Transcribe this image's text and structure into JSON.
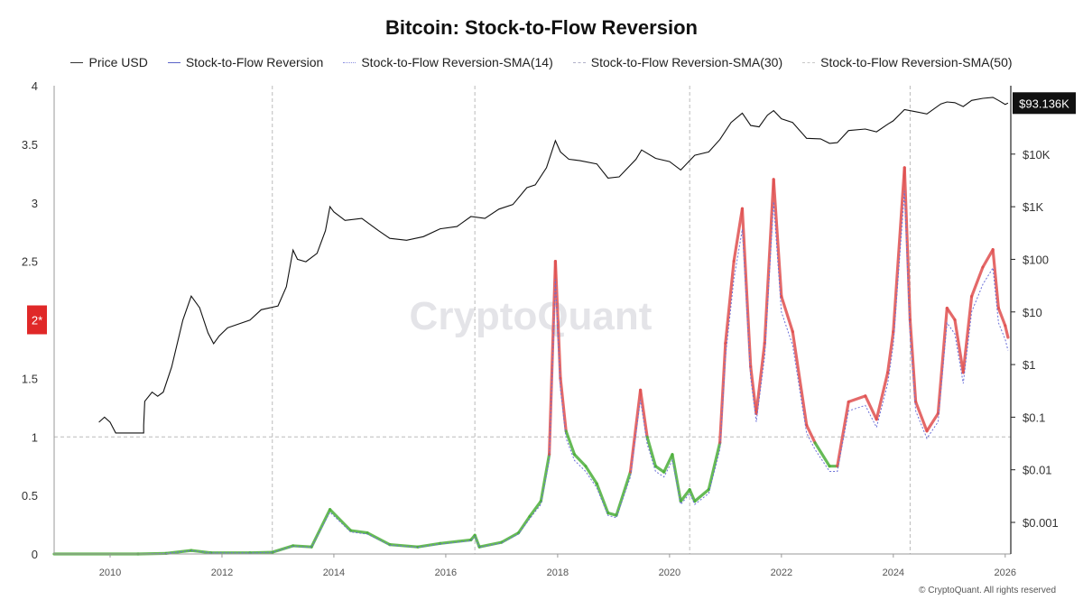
{
  "chart_data": {
    "type": "line",
    "title": "Bitcoin: Stock-to-Flow Reversion",
    "watermark": "CryptoQuant",
    "copyright": "© CryptoQuant. All rights reserved",
    "threshold_label": "2*",
    "current_price_label": "$93.136K",
    "legend": [
      {
        "name": "Price USD",
        "style": "solid",
        "color": "#333333"
      },
      {
        "name": "Stock-to-Flow Reversion",
        "style": "solid",
        "color": "#5a63c8"
      },
      {
        "name": "Stock-to-Flow Reversion-SMA(14)",
        "style": "dotted",
        "color": "#8a8fe0"
      },
      {
        "name": "Stock-to-Flow Reversion-SMA(30)",
        "style": "dashed",
        "color": "#b0b0c8"
      },
      {
        "name": "Stock-to-Flow Reversion-SMA(50)",
        "style": "dashed",
        "color": "#c8c8c8"
      }
    ],
    "x_ticks": [
      "2010",
      "2012",
      "2014",
      "2016",
      "2018",
      "2020",
      "2022",
      "2024",
      "2026"
    ],
    "x_range": [
      2009.0,
      2026.1
    ],
    "halvings": [
      2012.9,
      2016.52,
      2020.36,
      2024.3
    ],
    "y_left_ticks": [
      "0",
      "0.5",
      "1",
      "1.5",
      "2",
      "2.5",
      "3",
      "3.5",
      "4"
    ],
    "y_left_range": [
      0,
      4
    ],
    "y_left_reference": 1,
    "y_right_ticks": [
      "$0.001",
      "$0.01",
      "$0.1",
      "$1",
      "$10",
      "$100",
      "$1K",
      "$10K"
    ],
    "y_right_range_log10": [
      -3.6,
      5.3
    ],
    "colors": {
      "above_1": "#e05050",
      "below_1": "#4caf3a",
      "sma": "#6a6fd8",
      "price": "#111111",
      "badge": "#111111",
      "threshold_badge": "#e02828"
    },
    "price_series": [
      [
        2009.8,
        0.08
      ],
      [
        2009.9,
        0.1
      ],
      [
        2010.0,
        0.08
      ],
      [
        2010.1,
        0.05
      ],
      [
        2010.6,
        0.05
      ],
      [
        2010.6,
        0.07
      ],
      [
        2010.62,
        0.2
      ],
      [
        2010.75,
        0.3
      ],
      [
        2010.85,
        0.25
      ],
      [
        2010.95,
        0.3
      ],
      [
        2011.1,
        0.9
      ],
      [
        2011.3,
        7
      ],
      [
        2011.45,
        20
      ],
      [
        2011.6,
        12
      ],
      [
        2011.75,
        4
      ],
      [
        2011.85,
        2.5
      ],
      [
        2011.95,
        3.5
      ],
      [
        2012.1,
        5
      ],
      [
        2012.5,
        7
      ],
      [
        2012.7,
        11
      ],
      [
        2013.0,
        13
      ],
      [
        2013.15,
        30
      ],
      [
        2013.27,
        150
      ],
      [
        2013.35,
        100
      ],
      [
        2013.5,
        90
      ],
      [
        2013.7,
        130
      ],
      [
        2013.85,
        350
      ],
      [
        2013.93,
        1000
      ],
      [
        2014.0,
        800
      ],
      [
        2014.2,
        550
      ],
      [
        2014.5,
        600
      ],
      [
        2014.8,
        350
      ],
      [
        2015.0,
        250
      ],
      [
        2015.3,
        230
      ],
      [
        2015.6,
        270
      ],
      [
        2015.9,
        380
      ],
      [
        2016.2,
        420
      ],
      [
        2016.45,
        650
      ],
      [
        2016.7,
        600
      ],
      [
        2016.95,
        900
      ],
      [
        2017.2,
        1100
      ],
      [
        2017.45,
        2300
      ],
      [
        2017.6,
        2600
      ],
      [
        2017.8,
        5500
      ],
      [
        2017.96,
        18000
      ],
      [
        2018.05,
        11000
      ],
      [
        2018.2,
        8000
      ],
      [
        2018.4,
        7500
      ],
      [
        2018.7,
        6500
      ],
      [
        2018.9,
        3500
      ],
      [
        2019.1,
        3700
      ],
      [
        2019.4,
        8000
      ],
      [
        2019.5,
        12000
      ],
      [
        2019.75,
        8300
      ],
      [
        2020.0,
        7200
      ],
      [
        2020.2,
        5000
      ],
      [
        2020.45,
        9500
      ],
      [
        2020.7,
        11000
      ],
      [
        2020.9,
        19000
      ],
      [
        2021.1,
        40000
      ],
      [
        2021.3,
        60000
      ],
      [
        2021.45,
        35000
      ],
      [
        2021.6,
        33000
      ],
      [
        2021.75,
        55000
      ],
      [
        2021.86,
        67000
      ],
      [
        2022.0,
        47000
      ],
      [
        2022.2,
        40000
      ],
      [
        2022.45,
        20000
      ],
      [
        2022.7,
        19500
      ],
      [
        2022.86,
        16000
      ],
      [
        2023.0,
        16500
      ],
      [
        2023.2,
        28000
      ],
      [
        2023.5,
        30000
      ],
      [
        2023.7,
        26500
      ],
      [
        2023.9,
        37000
      ],
      [
        2024.0,
        43000
      ],
      [
        2024.2,
        70000
      ],
      [
        2024.4,
        64000
      ],
      [
        2024.6,
        58000
      ],
      [
        2024.85,
        90000
      ],
      [
        2024.96,
        98000
      ],
      [
        2025.1,
        95000
      ],
      [
        2025.25,
        80000
      ],
      [
        2025.4,
        105000
      ],
      [
        2025.6,
        115000
      ],
      [
        2025.78,
        120000
      ],
      [
        2025.88,
        105000
      ],
      [
        2026.0,
        88000
      ],
      [
        2026.05,
        93136
      ]
    ],
    "s2f_series": [
      [
        2009.0,
        0.0
      ],
      [
        2010.5,
        0.0
      ],
      [
        2011.0,
        0.005
      ],
      [
        2011.45,
        0.03
      ],
      [
        2011.8,
        0.01
      ],
      [
        2012.5,
        0.01
      ],
      [
        2012.9,
        0.015
      ],
      [
        2013.27,
        0.07
      ],
      [
        2013.6,
        0.06
      ],
      [
        2013.93,
        0.38
      ],
      [
        2014.3,
        0.2
      ],
      [
        2014.6,
        0.18
      ],
      [
        2015.0,
        0.08
      ],
      [
        2015.5,
        0.06
      ],
      [
        2015.9,
        0.09
      ],
      [
        2016.45,
        0.12
      ],
      [
        2016.52,
        0.16
      ],
      [
        2016.6,
        0.06
      ],
      [
        2017.0,
        0.1
      ],
      [
        2017.3,
        0.18
      ],
      [
        2017.5,
        0.32
      ],
      [
        2017.7,
        0.45
      ],
      [
        2017.85,
        0.85
      ],
      [
        2017.96,
        2.5
      ],
      [
        2018.05,
        1.5
      ],
      [
        2018.15,
        1.05
      ],
      [
        2018.3,
        0.85
      ],
      [
        2018.5,
        0.75
      ],
      [
        2018.7,
        0.6
      ],
      [
        2018.9,
        0.35
      ],
      [
        2019.05,
        0.33
      ],
      [
        2019.3,
        0.7
      ],
      [
        2019.48,
        1.4
      ],
      [
        2019.6,
        1.0
      ],
      [
        2019.75,
        0.75
      ],
      [
        2019.9,
        0.7
      ],
      [
        2020.05,
        0.85
      ],
      [
        2020.2,
        0.45
      ],
      [
        2020.36,
        0.55
      ],
      [
        2020.45,
        0.45
      ],
      [
        2020.7,
        0.55
      ],
      [
        2020.9,
        0.95
      ],
      [
        2021.0,
        1.8
      ],
      [
        2021.15,
        2.5
      ],
      [
        2021.3,
        2.95
      ],
      [
        2021.45,
        1.6
      ],
      [
        2021.55,
        1.2
      ],
      [
        2021.7,
        1.8
      ],
      [
        2021.86,
        3.2
      ],
      [
        2022.0,
        2.2
      ],
      [
        2022.2,
        1.9
      ],
      [
        2022.45,
        1.1
      ],
      [
        2022.6,
        0.95
      ],
      [
        2022.86,
        0.75
      ],
      [
        2023.0,
        0.75
      ],
      [
        2023.2,
        1.3
      ],
      [
        2023.5,
        1.35
      ],
      [
        2023.7,
        1.15
      ],
      [
        2023.9,
        1.55
      ],
      [
        2024.0,
        1.9
      ],
      [
        2024.2,
        3.3
      ],
      [
        2024.3,
        2.0
      ],
      [
        2024.4,
        1.3
      ],
      [
        2024.6,
        1.05
      ],
      [
        2024.8,
        1.2
      ],
      [
        2024.96,
        2.1
      ],
      [
        2025.1,
        2.0
      ],
      [
        2025.25,
        1.55
      ],
      [
        2025.4,
        2.2
      ],
      [
        2025.6,
        2.45
      ],
      [
        2025.78,
        2.6
      ],
      [
        2025.88,
        2.1
      ],
      [
        2026.0,
        1.95
      ],
      [
        2026.05,
        1.85
      ]
    ]
  }
}
